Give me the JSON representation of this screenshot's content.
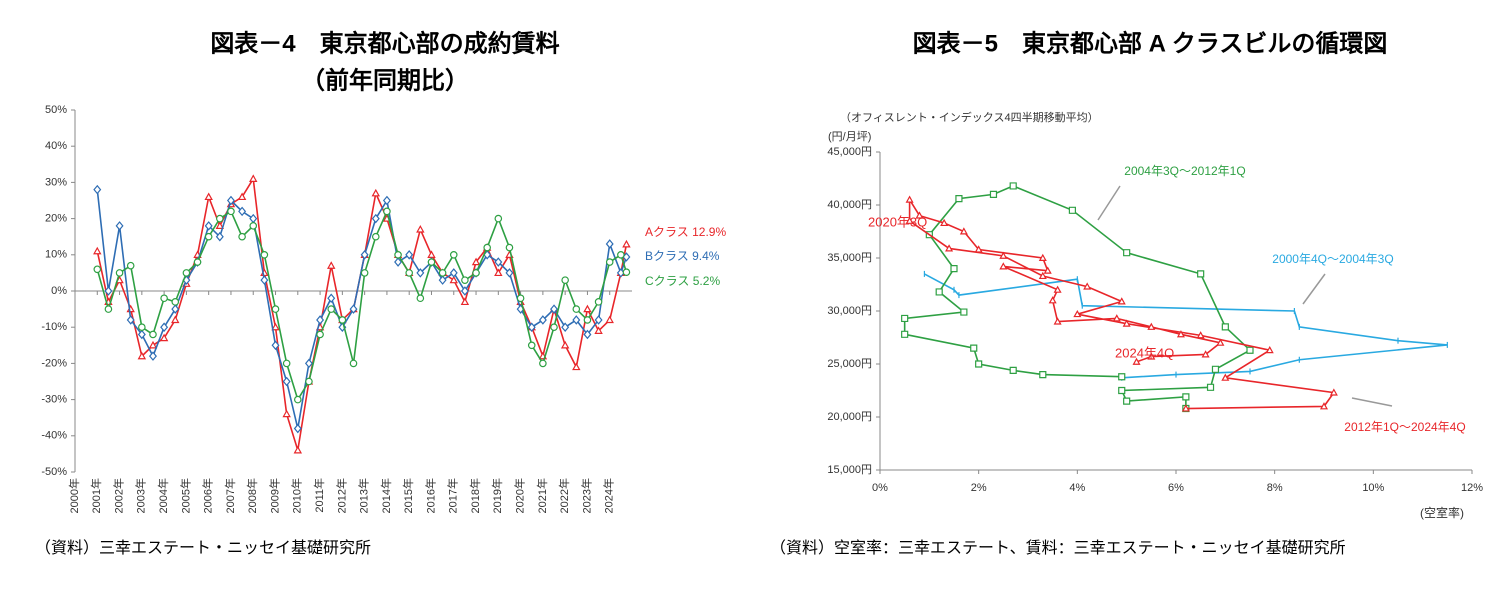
{
  "chart_data": [
    {
      "type": "line",
      "title": "図表－4　東京都心部の成約賃料",
      "subtitle": "（前年同期比）",
      "source": "（資料）三幸エステート・ニッセイ基礎研究所",
      "xlim": [
        2000,
        2025
      ],
      "xticks": [
        {
          "value": 2000,
          "label": "2000年"
        },
        {
          "value": 2001,
          "label": "2001年"
        },
        {
          "value": 2002,
          "label": "2002年"
        },
        {
          "value": 2003,
          "label": "2003年"
        },
        {
          "value": 2004,
          "label": "2004年"
        },
        {
          "value": 2005,
          "label": "2005年"
        },
        {
          "value": 2006,
          "label": "2006年"
        },
        {
          "value": 2007,
          "label": "2007年"
        },
        {
          "value": 2008,
          "label": "2008年"
        },
        {
          "value": 2009,
          "label": "2009年"
        },
        {
          "value": 2010,
          "label": "2010年"
        },
        {
          "value": 2011,
          "label": "2011年"
        },
        {
          "value": 2012,
          "label": "2012年"
        },
        {
          "value": 2013,
          "label": "2013年"
        },
        {
          "value": 2014,
          "label": "2014年"
        },
        {
          "value": 2015,
          "label": "2015年"
        },
        {
          "value": 2016,
          "label": "2016年"
        },
        {
          "value": 2017,
          "label": "2017年"
        },
        {
          "value": 2018,
          "label": "2018年"
        },
        {
          "value": 2019,
          "label": "2019年"
        },
        {
          "value": 2020,
          "label": "2020年"
        },
        {
          "value": 2021,
          "label": "2021年"
        },
        {
          "value": 2022,
          "label": "2022年"
        },
        {
          "value": 2023,
          "label": "2023年"
        },
        {
          "value": 2024,
          "label": "2024年"
        }
      ],
      "ylim": [
        -50,
        50
      ],
      "yticks": [
        {
          "value": 50,
          "label": "50%"
        },
        {
          "value": 40,
          "label": "40%"
        },
        {
          "value": 30,
          "label": "30%"
        },
        {
          "value": 20,
          "label": "20%"
        },
        {
          "value": 10,
          "label": "10%"
        },
        {
          "value": 0,
          "label": "0%"
        },
        {
          "value": -10,
          "label": "-10%"
        },
        {
          "value": -20,
          "label": "-20%"
        },
        {
          "value": -30,
          "label": "-30%"
        },
        {
          "value": -40,
          "label": "-40%"
        },
        {
          "value": -50,
          "label": "-50%"
        }
      ],
      "grid": false,
      "series": [
        {
          "name": "Aクラス 12.9%",
          "color": "#e8262a",
          "marker": "triangle",
          "x": [
            2001,
            2001.5,
            2002,
            2002.5,
            2003,
            2003.5,
            2004,
            2004.5,
            2005,
            2005.5,
            2006,
            2006.5,
            2007,
            2007.5,
            2008,
            2008.5,
            2009,
            2009.5,
            2010,
            2010.5,
            2011,
            2011.5,
            2012,
            2012.5,
            2013,
            2013.5,
            2014,
            2014.5,
            2015,
            2015.5,
            2016,
            2016.5,
            2017,
            2017.5,
            2018,
            2018.5,
            2019,
            2019.5,
            2020,
            2020.5,
            2021,
            2021.5,
            2022,
            2022.5,
            2023,
            2023.5,
            2024,
            2024.5,
            2024.75
          ],
          "values": [
            11,
            -3,
            3,
            -5,
            -18,
            -15,
            -13,
            -8,
            2,
            10,
            26,
            18,
            24,
            26,
            31,
            5,
            -10,
            -34,
            -44,
            -25,
            -10,
            7,
            -8,
            -5,
            10,
            27,
            20,
            10,
            5,
            17,
            10,
            5,
            3,
            -3,
            8,
            12,
            5,
            10,
            -3,
            -10,
            -18,
            -5,
            -15,
            -21,
            -5,
            -11,
            -8,
            5,
            12.9
          ]
        },
        {
          "name": "Bクラス 9.4%",
          "color": "#2e6db4",
          "marker": "diamond",
          "x": [
            2001,
            2001.5,
            2002,
            2002.5,
            2003,
            2003.5,
            2004,
            2004.5,
            2005,
            2005.5,
            2006,
            2006.5,
            2007,
            2007.5,
            2008,
            2008.5,
            2009,
            2009.5,
            2010,
            2010.5,
            2011,
            2011.5,
            2012,
            2012.5,
            2013,
            2013.5,
            2014,
            2014.5,
            2015,
            2015.5,
            2016,
            2016.5,
            2017,
            2017.5,
            2018,
            2018.5,
            2019,
            2019.5,
            2020,
            2020.5,
            2021,
            2021.5,
            2022,
            2022.5,
            2023,
            2023.5,
            2024,
            2024.5,
            2024.75
          ],
          "values": [
            28,
            0,
            18,
            -8,
            -12,
            -18,
            -10,
            -5,
            3,
            8,
            18,
            15,
            25,
            22,
            20,
            3,
            -15,
            -25,
            -38,
            -20,
            -8,
            -2,
            -10,
            -5,
            10,
            20,
            25,
            8,
            10,
            5,
            8,
            3,
            5,
            0,
            5,
            10,
            8,
            5,
            -5,
            -10,
            -8,
            -5,
            -10,
            -8,
            -12,
            -8,
            13,
            5,
            9.4
          ]
        },
        {
          "name": "Cクラス 5.2%",
          "color": "#2ea043",
          "marker": "circle",
          "x": [
            2001,
            2001.5,
            2002,
            2002.5,
            2003,
            2003.5,
            2004,
            2004.5,
            2005,
            2005.5,
            2006,
            2006.5,
            2007,
            2007.5,
            2008,
            2008.5,
            2009,
            2009.5,
            2010,
            2010.5,
            2011,
            2011.5,
            2012,
            2012.5,
            2013,
            2013.5,
            2014,
            2014.5,
            2015,
            2015.5,
            2016,
            2016.5,
            2017,
            2017.5,
            2018,
            2018.5,
            2019,
            2019.5,
            2020,
            2020.5,
            2021,
            2021.5,
            2022,
            2022.5,
            2023,
            2023.5,
            2024,
            2024.5,
            2024.75
          ],
          "values": [
            6,
            -5,
            5,
            7,
            -10,
            -12,
            -2,
            -3,
            5,
            8,
            15,
            20,
            22,
            15,
            18,
            10,
            -5,
            -20,
            -30,
            -25,
            -12,
            -5,
            -8,
            -20,
            5,
            15,
            22,
            10,
            5,
            -2,
            8,
            5,
            10,
            3,
            5,
            12,
            20,
            12,
            -2,
            -15,
            -20,
            -10,
            3,
            -5,
            -8,
            -3,
            8,
            10,
            5.2
          ]
        }
      ]
    },
    {
      "type": "line",
      "title": "図表－5　東京都心部 A クラスビルの循環図",
      "source": "（資料）空室率：三幸エステート、賃料：三幸エステート・ニッセイ基礎研究所",
      "y_label": "（オフィスレント・インデックス4四半期移動平均）",
      "y_unit": "(円/月坪)",
      "x_label": "(空室率)",
      "xlim": [
        0,
        12
      ],
      "xticks": [
        {
          "value": 0,
          "label": "0%"
        },
        {
          "value": 2,
          "label": "2%"
        },
        {
          "value": 4,
          "label": "4%"
        },
        {
          "value": 6,
          "label": "6%"
        },
        {
          "value": 8,
          "label": "8%"
        },
        {
          "value": 10,
          "label": "10%"
        },
        {
          "value": 12,
          "label": "12%"
        }
      ],
      "ylim": [
        15000,
        45000
      ],
      "yticks": [
        {
          "value": 45000,
          "label": "45,000円"
        },
        {
          "value": 40000,
          "label": "40,000円"
        },
        {
          "value": 35000,
          "label": "35,000円"
        },
        {
          "value": 30000,
          "label": "30,000円"
        },
        {
          "value": 25000,
          "label": "25,000円"
        },
        {
          "value": 20000,
          "label": "20,000円"
        },
        {
          "value": 15000,
          "label": "15,000円"
        }
      ],
      "grid": false,
      "series": [
        {
          "name": "2000年4Q～2004年3Q",
          "color": "#29a9e1",
          "marker": "dash",
          "x": [
            0.9,
            1.5,
            1.6,
            4.0,
            4.1,
            8.4,
            8.5,
            10.5,
            11.5,
            8.5,
            7.5,
            6.0,
            4.9
          ],
          "values": [
            33500,
            32000,
            31500,
            33000,
            30500,
            30000,
            28500,
            27200,
            26800,
            25400,
            24300,
            24000,
            23700
          ]
        },
        {
          "name": "2004年3Q～2012年1Q",
          "color": "#2ea043",
          "marker": "square",
          "x": [
            4.9,
            3.3,
            2.7,
            2.0,
            1.9,
            0.5,
            0.5,
            1.7,
            1.2,
            1.5,
            1.0,
            1.6,
            2.3,
            2.7,
            3.9,
            5.0,
            6.5,
            7.0,
            7.5,
            6.8,
            6.7,
            4.9,
            5.0,
            6.2,
            6.2
          ],
          "values": [
            23800,
            24000,
            24400,
            25000,
            26500,
            27800,
            29300,
            29900,
            31800,
            34000,
            37200,
            40600,
            41000,
            41800,
            39500,
            35500,
            33500,
            28500,
            26300,
            24500,
            22800,
            22500,
            21500,
            21900,
            20800
          ]
        },
        {
          "name": "2012年1Q～2024年4Q",
          "color": "#e8262a",
          "marker": "triangle",
          "x": [
            6.2,
            9.0,
            9.2,
            7.0,
            7.9,
            6.5,
            5.0,
            4.0,
            4.9,
            4.2,
            3.3,
            2.5,
            1.4,
            0.6,
            0.6,
            0.8,
            1.3,
            1.7,
            2.0,
            3.3,
            3.4,
            2.5,
            3.6,
            3.5,
            3.6,
            4.8,
            5.5,
            6.1,
            6.9,
            6.6,
            5.5,
            5.2
          ],
          "values": [
            20800,
            21000,
            22300,
            23700,
            26300,
            27700,
            28800,
            29700,
            30900,
            32300,
            33300,
            35200,
            35900,
            38500,
            40500,
            39000,
            38300,
            37500,
            35800,
            35000,
            33800,
            34200,
            32000,
            31000,
            29000,
            29300,
            28500,
            27800,
            27000,
            25900,
            25700,
            25200
          ]
        }
      ],
      "annotations": [
        {
          "text": "2020年3Q",
          "color": "#e8262a"
        },
        {
          "text": "2024年4Q",
          "color": "#e8262a"
        }
      ]
    }
  ]
}
